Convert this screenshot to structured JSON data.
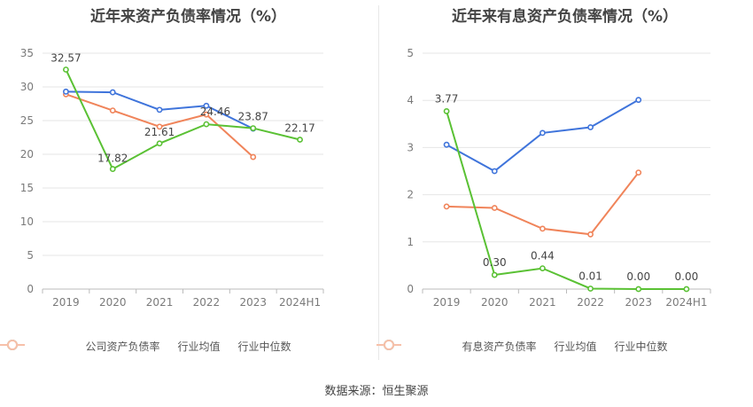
{
  "source": "数据来源：恒生聚源",
  "legend_colors": {
    "company": "#5ac134",
    "industry_avg": "#3f74db",
    "industry_median": "#f0845a"
  },
  "chart_data": [
    {
      "type": "line",
      "title": "近年来资产负债率情况（%）",
      "categories": [
        "2019",
        "2020",
        "2021",
        "2022",
        "2023",
        "2024H1"
      ],
      "ylim": [
        0,
        35
      ],
      "yticks": [
        "0",
        "5",
        "10",
        "15",
        "20",
        "25",
        "30",
        "35"
      ],
      "ytick_values": [
        0,
        5,
        10,
        15,
        20,
        25,
        30,
        35
      ],
      "legend_position": "bottom",
      "series": [
        {
          "name": "公司资产负债率",
          "key": "company",
          "values": [
            32.57,
            17.82,
            21.61,
            24.46,
            23.87,
            22.17
          ],
          "labels": [
            "32.57",
            "17.82",
            "21.61",
            "24.46",
            "23.87",
            "22.17"
          ]
        },
        {
          "name": "行业均值",
          "key": "industry_avg",
          "values": [
            29.3,
            29.2,
            26.6,
            27.2,
            23.8,
            null
          ]
        },
        {
          "name": "行业中位数",
          "key": "industry_median",
          "values": [
            28.9,
            26.5,
            24.1,
            25.9,
            19.6,
            null
          ]
        }
      ]
    },
    {
      "type": "line",
      "title": "近年来有息资产负债率情况（%）",
      "categories": [
        "2019",
        "2020",
        "2021",
        "2022",
        "2023",
        "2024H1"
      ],
      "ylim": [
        0,
        5
      ],
      "yticks": [
        "0",
        "1",
        "2",
        "3",
        "4",
        "5"
      ],
      "ytick_values": [
        0,
        1,
        2,
        3,
        4,
        5
      ],
      "legend_position": "bottom",
      "series": [
        {
          "name": "有息资产负债率",
          "key": "company",
          "values": [
            3.77,
            0.3,
            0.44,
            0.01,
            0.0,
            0.0
          ],
          "labels": [
            "3.77",
            "0.30",
            "0.44",
            "0.01",
            "0.00",
            "0.00"
          ]
        },
        {
          "name": "行业均值",
          "key": "industry_avg",
          "values": [
            3.06,
            2.5,
            3.31,
            3.43,
            4.01,
            null
          ]
        },
        {
          "name": "行业中位数",
          "key": "industry_median",
          "values": [
            1.75,
            1.72,
            1.28,
            1.16,
            2.47,
            null
          ]
        }
      ]
    }
  ]
}
